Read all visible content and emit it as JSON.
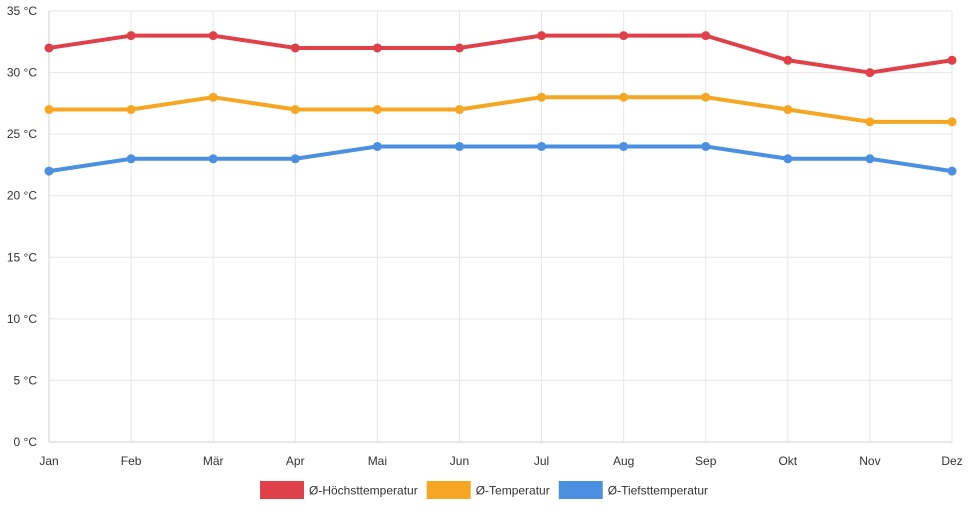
{
  "chart_data": {
    "type": "line",
    "title": "",
    "xlabel": "",
    "ylabel": "",
    "ylim": [
      0,
      35
    ],
    "y_ticks": [
      0,
      5,
      10,
      15,
      20,
      25,
      30,
      35
    ],
    "y_tick_suffix": " °C",
    "grid": true,
    "legend_position": "bottom",
    "categories": [
      "Jan",
      "Feb",
      "Mär",
      "Apr",
      "Mai",
      "Jun",
      "Jul",
      "Aug",
      "Sep",
      "Okt",
      "Nov",
      "Dez"
    ],
    "series": [
      {
        "key": "high",
        "name": "Ø-Höchsttemperatur",
        "color": "#e0404a",
        "values": [
          32,
          33,
          33,
          32,
          32,
          32,
          33,
          33,
          33,
          31,
          30,
          31
        ]
      },
      {
        "key": "mean",
        "name": "Ø-Temperatur",
        "color": "#f5a623",
        "values": [
          27,
          27,
          28,
          27,
          27,
          27,
          28,
          28,
          28,
          27,
          26,
          26
        ]
      },
      {
        "key": "low",
        "name": "Ø-Tiefsttemperatur",
        "color": "#4a8fe0",
        "values": [
          22,
          23,
          23,
          23,
          24,
          24,
          24,
          24,
          24,
          23,
          23,
          22
        ]
      }
    ]
  }
}
